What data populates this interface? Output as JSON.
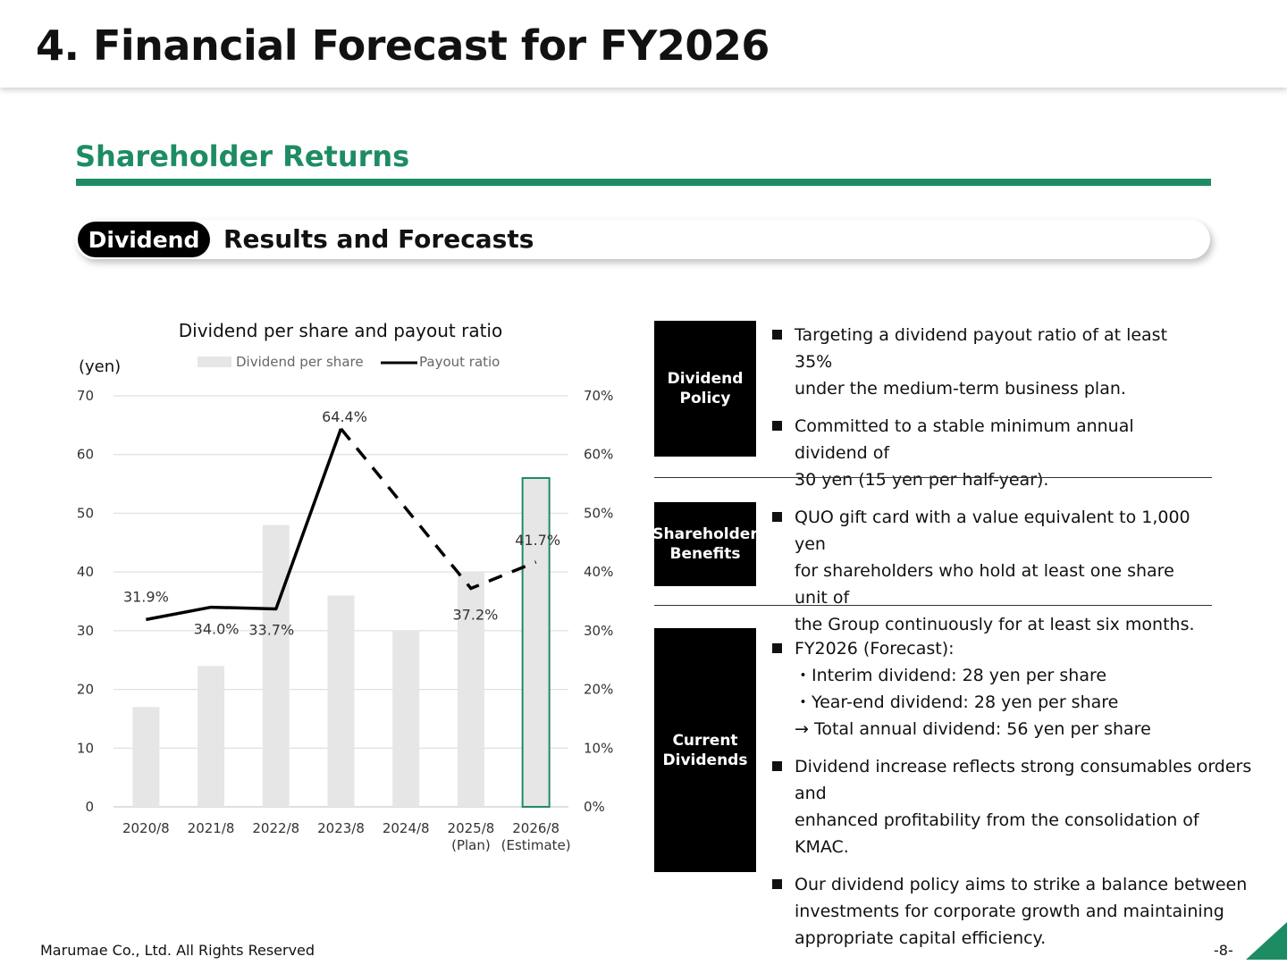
{
  "header": {
    "title": "4. Financial Forecast for FY2026"
  },
  "section": {
    "title": "Shareholder Returns"
  },
  "banner": {
    "tag": "Dividend",
    "title": "Results and Forecasts"
  },
  "chart_data": {
    "type": "bar+line",
    "title": "Dividend per share and payout ratio",
    "y_unit_label": "(yen)",
    "categories": [
      [
        "2020/8"
      ],
      [
        "2021/8"
      ],
      [
        "2022/8"
      ],
      [
        "2023/8"
      ],
      [
        "2024/8"
      ],
      [
        "2025/8",
        "(Plan)"
      ],
      [
        "2026/8",
        "(Estimate)"
      ]
    ],
    "left_axis": {
      "ylim": [
        0,
        70
      ],
      "ticks": [
        "0",
        "10",
        "20",
        "30",
        "40",
        "50",
        "60",
        "70"
      ]
    },
    "right_axis": {
      "ylim": [
        0,
        70
      ],
      "ticks": [
        "0%",
        "10%",
        "20%",
        "30%",
        "40%",
        "50%",
        "60%",
        "70%"
      ]
    },
    "grid": true,
    "legend_position": "top",
    "series": [
      {
        "name": "Dividend per share",
        "type": "bar",
        "axis": "left",
        "values": [
          17,
          24,
          48,
          36,
          30,
          40,
          56
        ],
        "color": "#e6e6e6",
        "highlight_last_color": "#1e8c63"
      },
      {
        "name": "Payout ratio",
        "type": "line",
        "axis": "right",
        "values": [
          31.9,
          34.0,
          33.7,
          64.4,
          null,
          37.2,
          41.7
        ],
        "labels": [
          "31.9%",
          "34.0%",
          "33.7%",
          "64.4%",
          "",
          "37.2%",
          "41.7%"
        ],
        "solid_through_index": 3,
        "color": "#000000"
      }
    ]
  },
  "policy": {
    "label": [
      "Dividend",
      "Policy"
    ],
    "bullets": [
      [
        "Targeting a dividend payout ratio of at least 35%",
        "under the medium-term business plan."
      ],
      [
        "Committed to a stable minimum annual dividend of",
        "30 yen (15 yen per half-year)."
      ]
    ]
  },
  "benefits": {
    "label": [
      "Shareholder",
      "Benefits"
    ],
    "bullets": [
      [
        "QUO gift card with a value equivalent to 1,000 yen",
        "for shareholders who hold at least one share unit of",
        "the Group continuously for at least six months."
      ]
    ]
  },
  "current": {
    "label": [
      "Current",
      "Dividends"
    ],
    "bullets": [
      [
        "FY2026 (Forecast):",
        "・Interim dividend: 28 yen per share",
        "・Year-end dividend: 28 yen per share",
        "→ Total annual dividend: 56 yen per share"
      ],
      [
        "Dividend increase reflects strong consumables orders and",
        "enhanced profitability from the consolidation of KMAC."
      ],
      [
        "Our dividend policy aims to strike a balance between",
        "investments for corporate growth and maintaining",
        "appropriate capital efficiency."
      ]
    ]
  },
  "footer": {
    "copyright": "Marumae Co., Ltd. All Rights Reserved",
    "page": "-8-"
  }
}
